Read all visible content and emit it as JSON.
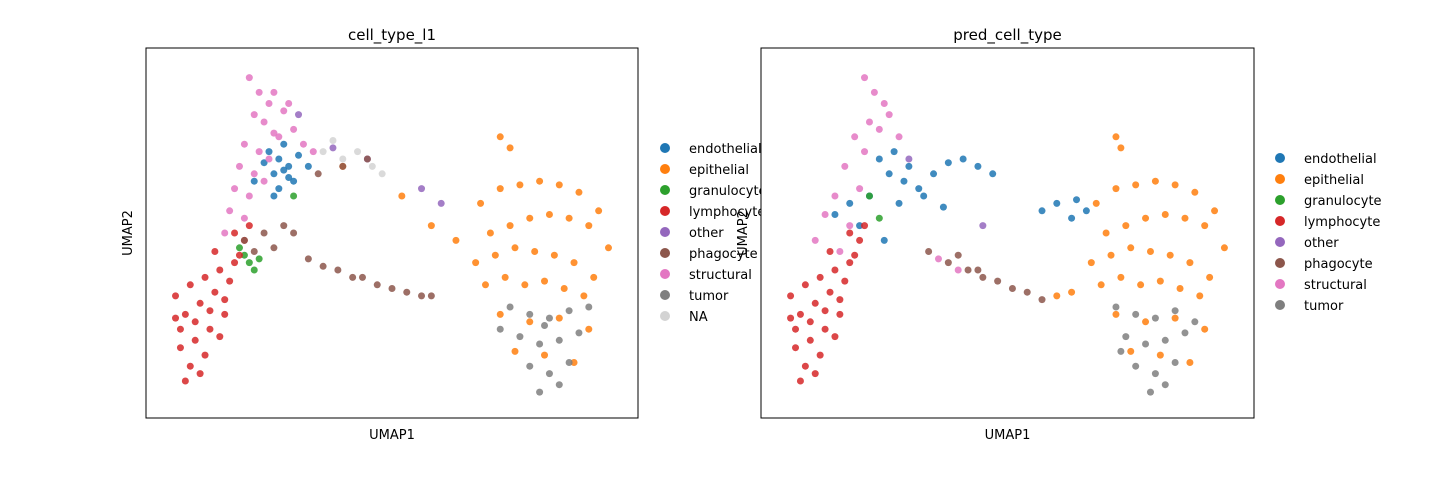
{
  "chart_data": [
    {
      "type": "scatter",
      "title": "cell_type_l1",
      "x_label": "UMAP1",
      "y_label": "UMAP2",
      "xlim": [
        0,
        100
      ],
      "ylim": [
        0,
        100
      ],
      "series": [
        {
          "name": "endothelial",
          "color": "#1f77b4",
          "x": [
            25,
            27,
            29,
            26,
            28,
            30,
            24,
            27,
            29,
            31,
            26,
            28,
            22,
            33
          ],
          "y": [
            72,
            70,
            68,
            66,
            67,
            64,
            69,
            62,
            65,
            71,
            60,
            74,
            64,
            68
          ]
        },
        {
          "name": "epithelial",
          "color": "#ff7f0e",
          "x": [
            68,
            72,
            76,
            80,
            84,
            88,
            92,
            70,
            74,
            78,
            82,
            86,
            90,
            94,
            67,
            71,
            75,
            79,
            83,
            87,
            91,
            69,
            73,
            77,
            81,
            85,
            89,
            72,
            78,
            84,
            90,
            75,
            81,
            87,
            72,
            74,
            40,
            52,
            58,
            63
          ],
          "y": [
            58,
            62,
            63,
            64,
            63,
            61,
            56,
            50,
            52,
            54,
            55,
            54,
            52,
            46,
            42,
            44,
            46,
            45,
            44,
            42,
            38,
            36,
            38,
            36,
            37,
            35,
            33,
            28,
            26,
            27,
            24,
            18,
            17,
            15,
            76,
            73,
            68,
            60,
            52,
            48
          ]
        },
        {
          "name": "granulocyte",
          "color": "#2ca02c",
          "x": [
            20,
            21,
            22,
            19,
            23,
            30
          ],
          "y": [
            44,
            42,
            40,
            46,
            43,
            60
          ]
        },
        {
          "name": "lymphocyte",
          "color": "#d62728",
          "x": [
            6,
            9,
            12,
            15,
            18,
            8,
            11,
            14,
            17,
            20,
            7,
            10,
            13,
            16,
            19,
            7,
            10,
            13,
            16,
            9,
            12,
            15,
            8,
            11,
            6,
            21,
            14,
            18
          ],
          "y": [
            33,
            36,
            38,
            40,
            42,
            28,
            31,
            34,
            37,
            48,
            24,
            26,
            29,
            32,
            44,
            19,
            21,
            24,
            28,
            14,
            17,
            22,
            10,
            12,
            27,
            52,
            45,
            50
          ]
        },
        {
          "name": "other",
          "color": "#9467bd",
          "x": [
            31,
            38,
            45,
            56,
            60
          ],
          "y": [
            82,
            73,
            70,
            62,
            58
          ]
        },
        {
          "name": "phagocyte",
          "color": "#8c564b",
          "x": [
            20,
            24,
            28,
            22,
            26,
            30,
            33,
            36,
            39,
            42,
            44,
            47,
            50,
            53,
            56,
            58,
            35,
            40,
            45
          ],
          "y": [
            48,
            50,
            52,
            45,
            46,
            50,
            43,
            41,
            40,
            38,
            38,
            36,
            35,
            34,
            33,
            33,
            66,
            68,
            70
          ]
        },
        {
          "name": "structural",
          "color": "#e377c2",
          "x": [
            21,
            23,
            25,
            22,
            24,
            26,
            28,
            20,
            23,
            27,
            30,
            19,
            22,
            25,
            32,
            18,
            21,
            24,
            17,
            20,
            26,
            29,
            34,
            16
          ],
          "y": [
            92,
            88,
            85,
            82,
            80,
            77,
            83,
            74,
            72,
            76,
            78,
            68,
            66,
            70,
            74,
            62,
            60,
            64,
            56,
            54,
            88,
            85,
            72,
            50
          ]
        },
        {
          "name": "tumor",
          "color": "#7f7f7f",
          "x": [
            74,
            78,
            82,
            86,
            76,
            80,
            84,
            88,
            78,
            82,
            86,
            80,
            84,
            72,
            90,
            81
          ],
          "y": [
            30,
            28,
            27,
            29,
            22,
            20,
            21,
            23,
            14,
            12,
            15,
            7,
            9,
            24,
            30,
            25
          ]
        },
        {
          "name": "NA",
          "color": "#d3d3d3",
          "x": [
            40,
            43,
            46,
            38,
            48,
            36
          ],
          "y": [
            70,
            72,
            68,
            75,
            66,
            72
          ]
        }
      ]
    },
    {
      "type": "scatter",
      "title": "pred_cell_type",
      "x_label": "UMAP1",
      "y_label": "UMAP2",
      "xlim": [
        0,
        100
      ],
      "ylim": [
        0,
        100
      ],
      "series": [
        {
          "name": "endothelial",
          "color": "#1f77b4",
          "x": [
            24,
            27,
            30,
            26,
            29,
            32,
            35,
            38,
            41,
            44,
            47,
            22,
            28,
            33,
            57,
            60,
            63,
            66,
            64,
            18,
            20,
            15,
            25,
            37
          ],
          "y": [
            70,
            72,
            68,
            66,
            64,
            62,
            66,
            69,
            70,
            68,
            66,
            60,
            58,
            60,
            56,
            58,
            54,
            56,
            59,
            58,
            52,
            55,
            48,
            57
          ]
        },
        {
          "name": "epithelial",
          "color": "#ff7f0e",
          "x": [
            68,
            72,
            76,
            80,
            84,
            88,
            92,
            70,
            74,
            78,
            82,
            86,
            90,
            94,
            67,
            71,
            75,
            79,
            83,
            87,
            91,
            69,
            73,
            77,
            81,
            85,
            89,
            72,
            78,
            84,
            90,
            75,
            81,
            87,
            72,
            73,
            60,
            63
          ],
          "y": [
            58,
            62,
            63,
            64,
            63,
            61,
            56,
            50,
            52,
            54,
            55,
            54,
            52,
            46,
            42,
            44,
            46,
            45,
            44,
            42,
            38,
            36,
            38,
            36,
            37,
            35,
            33,
            28,
            26,
            27,
            24,
            18,
            17,
            15,
            76,
            73,
            33,
            34
          ]
        },
        {
          "name": "granulocyte",
          "color": "#2ca02c",
          "x": [
            22,
            24
          ],
          "y": [
            60,
            54
          ]
        },
        {
          "name": "lymphocyte",
          "color": "#d62728",
          "x": [
            6,
            9,
            12,
            15,
            18,
            8,
            11,
            14,
            17,
            20,
            7,
            10,
            13,
            16,
            19,
            7,
            10,
            13,
            16,
            9,
            12,
            15,
            8,
            11,
            6,
            21,
            14,
            18
          ],
          "y": [
            33,
            36,
            38,
            40,
            42,
            28,
            31,
            34,
            37,
            48,
            24,
            26,
            29,
            32,
            44,
            19,
            21,
            24,
            28,
            14,
            17,
            22,
            10,
            12,
            27,
            52,
            45,
            50
          ]
        },
        {
          "name": "other",
          "color": "#9467bd",
          "x": [
            30,
            45
          ],
          "y": [
            70,
            52
          ]
        },
        {
          "name": "phagocyte",
          "color": "#8c564b",
          "x": [
            34,
            38,
            42,
            45,
            48,
            51,
            54,
            57,
            40,
            44
          ],
          "y": [
            45,
            42,
            40,
            38,
            37,
            35,
            34,
            32,
            44,
            40
          ]
        },
        {
          "name": "structural",
          "color": "#e377c2",
          "x": [
            21,
            23,
            25,
            22,
            24,
            19,
            21,
            17,
            15,
            20,
            13,
            18,
            11,
            16,
            26,
            28,
            36,
            40
          ],
          "y": [
            92,
            88,
            85,
            80,
            78,
            76,
            72,
            68,
            60,
            62,
            55,
            52,
            48,
            45,
            82,
            76,
            43,
            40
          ]
        },
        {
          "name": "tumor",
          "color": "#7f7f7f",
          "x": [
            72,
            76,
            80,
            84,
            74,
            78,
            82,
            86,
            76,
            80,
            84,
            79,
            82,
            88,
            73
          ],
          "y": [
            30,
            28,
            27,
            29,
            22,
            20,
            21,
            23,
            14,
            12,
            15,
            7,
            9,
            26,
            18
          ]
        }
      ]
    }
  ]
}
